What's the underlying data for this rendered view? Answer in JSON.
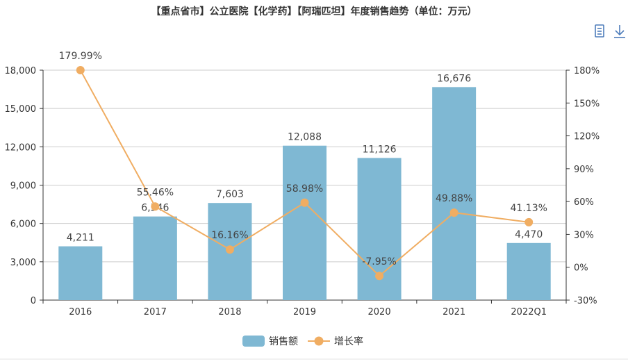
{
  "chart_data": {
    "type": "bar",
    "title": "【重点省市】公立医院【化学药】【阿瑞匹坦】年度销售趋势（单位：万元）",
    "categories": [
      "2016",
      "2017",
      "2018",
      "2019",
      "2020",
      "2021",
      "2022Q1"
    ],
    "series": [
      {
        "name": "销售额",
        "type": "bar",
        "axis": "left",
        "values": [
          4211,
          6546,
          7603,
          12088,
          11126,
          16676,
          4470
        ]
      },
      {
        "name": "增长率",
        "type": "line",
        "axis": "right",
        "unit": "%",
        "values": [
          179.99,
          55.46,
          16.16,
          58.98,
          -7.95,
          49.88,
          41.13
        ]
      }
    ],
    "y_left": {
      "min": 0,
      "max": 18000,
      "interval": 3000
    },
    "y_right": {
      "min": -30,
      "max": 180,
      "interval": 30,
      "unit": "%"
    },
    "grid": true,
    "legend_position": "bottom-center"
  },
  "toolbox": {
    "icons": [
      "data-view-icon",
      "download-icon"
    ]
  },
  "colors": {
    "bar": "#7fb8d3",
    "line": "#f0ad62",
    "axis": "#333333",
    "grid": "#cccccc",
    "icon": "#4d7cba",
    "divider": "#e6e6e6"
  }
}
